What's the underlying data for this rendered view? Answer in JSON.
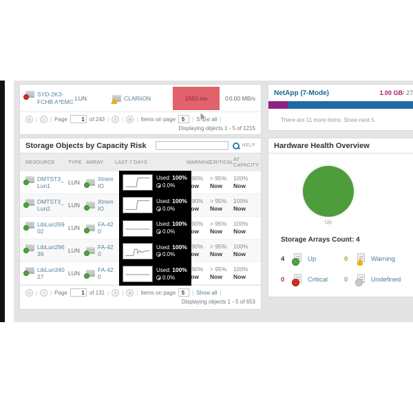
{
  "sep": "|",
  "colors": {
    "link": "#53819c",
    "bar_blue": "#2268a4",
    "bar_purple": "#8e2383",
    "alert_red_bg": "#e2636c",
    "pie_green": "#4e9d3c",
    "warning_yellow": "#e8b50c",
    "critical_red": "#cc2f26"
  },
  "top_luns_panel": {
    "row": {
      "resource": "SYD-2K3-FCHB A*EMC",
      "type": "LUN",
      "array": "CLARiiON",
      "latency": "1550 ms",
      "iops": "0",
      "throughput": "0.00 MB/s"
    },
    "pagination": {
      "page_label": "Page",
      "page_value": "1",
      "of_text": "of 243",
      "items_label": "Items on page",
      "items_value": "5",
      "show_all": "Show all",
      "displaying": "Displaying objects 1 - 5 of 1215"
    }
  },
  "capacity_panel": {
    "title": "Storage Objects by Capacity Risk",
    "search_value": "",
    "help_label": "HELP",
    "columns": {
      "resource": "Resource",
      "type": "Type",
      "array": "Array",
      "last7": "Last 7 days",
      "warning": "Warning",
      "critical": "Critical",
      "at_capacity": "At Capacity"
    },
    "rows": [
      {
        "resource": "DMTST3_Lun1",
        "type": "LUN",
        "array": "XtremIO",
        "trend": "step",
        "used": "Used: ",
        "used_pct": "100%",
        "free_pct": "0.0%",
        "warning": "> 90%",
        "warning_when": "Now",
        "critical": "> 95%",
        "critical_when": "Now",
        "at_capacity": "100%",
        "at_capacity_when": "Now"
      },
      {
        "resource": "DMTST3_Lun2",
        "type": "LUN",
        "array": "XtremIO",
        "trend": "step",
        "used": "Used: ",
        "used_pct": "100%",
        "free_pct": "0.0%",
        "warning": "> 90%",
        "warning_when": "Now",
        "critical": "> 95%",
        "critical_when": "Now",
        "at_capacity": "100%",
        "at_capacity_when": "Now"
      },
      {
        "resource": "LibLun26902",
        "type": "LUN",
        "array": "FA-420",
        "trend": "flat",
        "used": "Used: ",
        "used_pct": "100%",
        "free_pct": "0.0%",
        "warning": "> 90%",
        "warning_when": "Now",
        "critical": "> 95%",
        "critical_when": "Now",
        "at_capacity": "100%",
        "at_capacity_when": "Now"
      },
      {
        "resource": "LibLun29639",
        "type": "LUN",
        "array": "FA-420",
        "trend": "bump",
        "used": "Used: ",
        "used_pct": "100%",
        "free_pct": "0.0%",
        "warning": "> 90%",
        "warning_when": "Now",
        "critical": "> 95%",
        "critical_when": "Now",
        "at_capacity": "100%",
        "at_capacity_when": "Now"
      },
      {
        "resource": "LibLun34027",
        "type": "LUN",
        "array": "FA-420",
        "trend": "flat",
        "used": "Used: ",
        "used_pct": "100%",
        "free_pct": "0.0%",
        "warning": "> 90%",
        "warning_when": "Now",
        "critical": "> 95%",
        "critical_when": "Now",
        "at_capacity": "100%",
        "at_capacity_when": "Now"
      }
    ],
    "pagination": {
      "page_label": "Page",
      "page_value": "1",
      "of_text": "of 131",
      "items_label": "Items on page",
      "items_value": "5",
      "show_all": "Show all",
      "displaying": "Displaying objects 1 - 5 of 653"
    }
  },
  "netapp_panel": {
    "title": "NetApp (7-Mode)",
    "used_text": "1.00 GB",
    "total_text": " / 27",
    "bar_purple_pct": 13,
    "more_text": "There are 11 more items. Show next 5."
  },
  "hardware_panel": {
    "title": "Hardware Health Overview",
    "pie_label": "Up",
    "pie_value_pct": 100,
    "count_title": "Storage Arrays Count: 4",
    "legend": [
      {
        "count": "4",
        "label": "Up"
      },
      {
        "count": "0",
        "label": "Warning"
      },
      {
        "count": "0",
        "label": "Critical"
      },
      {
        "count": "0",
        "label": "Undefined"
      }
    ]
  }
}
